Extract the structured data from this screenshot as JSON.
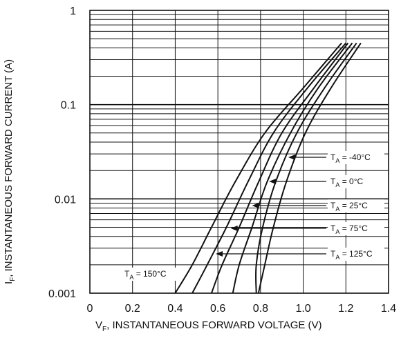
{
  "chart_data": {
    "type": "line",
    "xlabel": "V_F, INSTANTANEOUS FORWARD VOLTAGE (V)",
    "xlabel_parts": {
      "main": "V",
      "sub": "F",
      "rest": ", INSTANTANEOUS FORWARD VOLTAGE (V)"
    },
    "ylabel": "I_F, INSTANTANEOUS FORWARD CURRENT (A)",
    "ylabel_parts": {
      "main": "I",
      "sub": "F",
      "rest": ", INSTANTANEOUS FORWARD CURRENT (A)"
    },
    "xlim": [
      0,
      1.4
    ],
    "ylim": [
      0.001,
      1
    ],
    "yscale": "log",
    "grid": true,
    "xticks": [
      "0",
      "0.2",
      "0.4",
      "0.6",
      "0.8",
      "1.0",
      "1.2",
      "1.4"
    ],
    "yticks": [
      "0.001",
      "0.01",
      "0.1",
      "1"
    ],
    "series": [
      {
        "name": "T_A = 150°C",
        "label_parts": {
          "main": "T",
          "sub": "A",
          "rest": " = 150°C"
        },
        "x": [
          0.4,
          0.48,
          0.57,
          0.68,
          0.82,
          1.0,
          1.18
        ],
        "y": [
          0.001,
          0.002,
          0.005,
          0.015,
          0.05,
          0.15,
          0.45
        ]
      },
      {
        "name": "T_A = 125°C",
        "label_parts": {
          "main": "T",
          "sub": "A",
          "rest": " = 125°C"
        },
        "x": [
          0.48,
          0.55,
          0.64,
          0.74,
          0.86,
          1.02,
          1.2
        ],
        "y": [
          0.001,
          0.002,
          0.005,
          0.015,
          0.05,
          0.15,
          0.45
        ]
      },
      {
        "name": "T_A = 75°C",
        "label_parts": {
          "main": "T",
          "sub": "A",
          "rest": " = 75°C"
        },
        "x": [
          0.57,
          0.62,
          0.7,
          0.79,
          0.9,
          1.05,
          1.21
        ],
        "y": [
          0.001,
          0.002,
          0.005,
          0.015,
          0.05,
          0.15,
          0.45
        ]
      },
      {
        "name": "T_A = 25°C",
        "label_parts": {
          "main": "T",
          "sub": "A",
          "rest": " = 25°C"
        },
        "x": [
          0.67,
          0.7,
          0.76,
          0.83,
          0.94,
          1.07,
          1.23
        ],
        "y": [
          0.001,
          0.002,
          0.005,
          0.015,
          0.05,
          0.15,
          0.45
        ]
      },
      {
        "name": "T_A = 0°C",
        "label_parts": {
          "main": "T",
          "sub": "A",
          "rest": " = 0°C"
        },
        "x": [
          0.78,
          0.78,
          0.81,
          0.87,
          0.97,
          1.1,
          1.25
        ],
        "y": [
          0.001,
          0.002,
          0.005,
          0.015,
          0.05,
          0.15,
          0.45
        ]
      },
      {
        "name": "T_A = -40°C",
        "label_parts": {
          "main": "T",
          "sub": "A",
          "rest": " = -40°C"
        },
        "x": [
          0.79,
          0.82,
          0.86,
          0.92,
          1.01,
          1.13,
          1.27
        ],
        "y": [
          0.001,
          0.002,
          0.005,
          0.015,
          0.05,
          0.15,
          0.45
        ]
      }
    ],
    "annotations": [
      {
        "series": "T_A = -40°C",
        "text_parts": {
          "main": "T",
          "sub": "A",
          "rest": " = -40°C"
        },
        "placement": "right",
        "arrow_to": {
          "x": 0.93,
          "y": 0.0165
        }
      },
      {
        "series": "T_A = 0°C",
        "text_parts": {
          "main": "T",
          "sub": "A",
          "rest": " = 0°C"
        },
        "placement": "right",
        "arrow_to": {
          "x": 0.84,
          "y": 0.0105
        }
      },
      {
        "series": "T_A = 25°C",
        "text_parts": {
          "main": "T",
          "sub": "A",
          "rest": " = 25°C"
        },
        "placement": "right",
        "arrow_to": {
          "x": 0.76,
          "y": 0.0055
        }
      },
      {
        "series": "T_A = 75°C",
        "text_parts": {
          "main": "T",
          "sub": "A",
          "rest": " = 75°C"
        },
        "placement": "right",
        "arrow_to": {
          "x": 0.66,
          "y": 0.0037
        }
      },
      {
        "series": "T_A = 125°C",
        "text_parts": {
          "main": "T",
          "sub": "A",
          "rest": " = 125°C"
        },
        "placement": "right",
        "arrow_to": {
          "x": 0.59,
          "y": 0.0025
        }
      },
      {
        "series": "T_A = 150°C",
        "text_parts": {
          "main": "T",
          "sub": "A",
          "rest": " = 150°C"
        },
        "placement": "bottom-left",
        "arrow_to": null
      }
    ],
    "colors": {
      "line": "#111111",
      "grid": "#111111",
      "background": "#ffffff"
    }
  }
}
